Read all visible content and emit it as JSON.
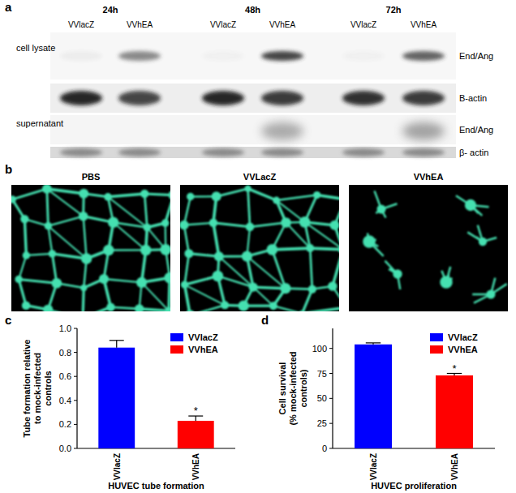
{
  "blot": {
    "label": "a",
    "timepoints": [
      "24h",
      "48h",
      "72h"
    ],
    "lanes": [
      "VVlacZ",
      "VVhEA",
      "VVlacZ",
      "VVhEA",
      "VVlacZ",
      "VVhEA"
    ],
    "rows": [
      {
        "name": "cell lysate",
        "protein": "End/Ang"
      },
      {
        "protein": "B-actin"
      },
      {
        "name": "supernatant",
        "protein": "End/Ang"
      },
      {
        "protein": "β- actin"
      }
    ]
  },
  "micrographs": {
    "label": "b",
    "titles": [
      "PBS",
      "VVLacZ",
      "VVhEA"
    ]
  },
  "chart_data": [
    {
      "type": "bar",
      "title": "c",
      "y_label": "Tube formation relative\nto mock-infected\ncontrols",
      "x_label": "HUVEC tube formation",
      "categories": [
        "VVlacZ",
        "VVhEA"
      ],
      "values": [
        0.84,
        0.23
      ],
      "errors": [
        0.06,
        0.04
      ],
      "colors": [
        "#0000ff",
        "#ff0000"
      ],
      "ylim": [
        0,
        1.0
      ],
      "yticks": [
        {
          "value": 0,
          "label": "0.0"
        },
        {
          "value": 0.2,
          "label": "0.2"
        },
        {
          "value": 0.4,
          "label": "0.4"
        },
        {
          "value": 0.6,
          "label": "0.6"
        },
        {
          "value": 0.8,
          "label": "0.8"
        },
        {
          "value": 1.0,
          "label": "1.0"
        }
      ],
      "legend": "upper right",
      "annotations": [
        {
          "text": "*",
          "category": "VVhEA"
        }
      ]
    },
    {
      "type": "bar",
      "title": "d",
      "y_label": "Cell survival\n(% mock-infected\ncontrols)",
      "x_label": "HUVEC proliferation",
      "categories": [
        "VVlacZ",
        "VVhEA"
      ],
      "values": [
        104,
        73
      ],
      "errors": [
        1.5,
        2
      ],
      "colors": [
        "#0000ff",
        "#ff0000"
      ],
      "ylim": [
        0,
        120
      ],
      "yticks": [
        0,
        25,
        50,
        75,
        100
      ],
      "legend": "upper right",
      "annotations": [
        {
          "text": "*",
          "category": "VVhEA"
        }
      ]
    }
  ]
}
